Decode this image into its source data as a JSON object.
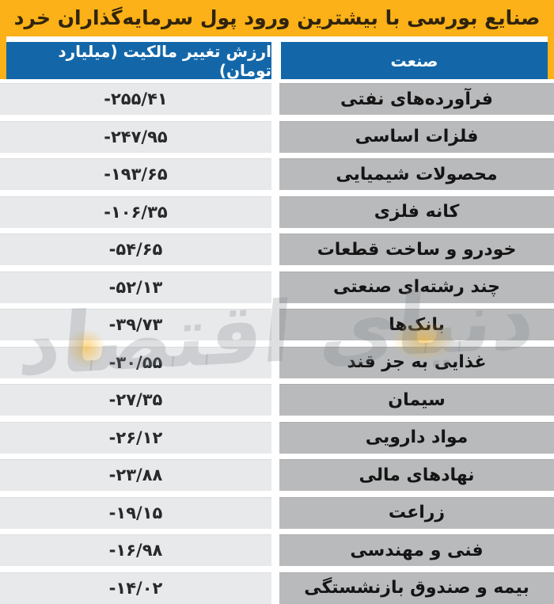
{
  "title": "صنایع بورسی با بیشترین ورود پول سرمایه‌گذاران خرد",
  "watermark": "دنیای اقتصاد",
  "table": {
    "columns": {
      "value_header": "ارزش تغییر مالکیت (میلیارد تومان)",
      "industry_header": "صنعت"
    },
    "rows": [
      {
        "value": "-۲۵۵/۴۱",
        "industry": "فرآورده‌های نفتی"
      },
      {
        "value": "-۲۴۷/۹۵",
        "industry": "فلزات اساسی"
      },
      {
        "value": "-۱۹۳/۶۵",
        "industry": "محصولات شیمیایی"
      },
      {
        "value": "-۱۰۶/۳۵",
        "industry": "کانه فلزی"
      },
      {
        "value": "-۵۴/۶۵",
        "industry": "خودرو و ساخت قطعات"
      },
      {
        "value": "-۵۲/۱۳",
        "industry": "چند رشته‌ای صنعتی"
      },
      {
        "value": "-۳۹/۷۳",
        "industry": "بانک‌ها"
      },
      {
        "value": "-۳۰/۵۵",
        "industry": "غذایی به جز قند"
      },
      {
        "value": "-۲۷/۳۵",
        "industry": "سیمان"
      },
      {
        "value": "-۲۶/۱۲",
        "industry": "مواد دارویی"
      },
      {
        "value": "-۲۳/۸۸",
        "industry": "نهادهای مالی"
      },
      {
        "value": "-۱۹/۱۵",
        "industry": "زراعت"
      },
      {
        "value": "-۱۶/۹۸",
        "industry": "فنی و مهندسی"
      },
      {
        "value": "-۱۴/۰۲",
        "industry": "بیمه و صندوق بازنشستگی"
      }
    ]
  },
  "colors": {
    "accent_yellow": "#FBB117",
    "header_blue": "#1367A9",
    "value_cell_bg": "#E8E9EB",
    "industry_cell_bg": "#B9BABC",
    "title_text": "#30240E"
  },
  "chart_data": {
    "type": "table",
    "title": "صنایع بورسی با بیشترین ورود پول سرمایه‌گذاران خرد",
    "columns": [
      "ارزش تغییر مالکیت (میلیارد تومان)",
      "صنعت"
    ],
    "categories": [
      "فرآورده‌های نفتی",
      "فلزات اساسی",
      "محصولات شیمیایی",
      "کانه فلزی",
      "خودرو و ساخت قطعات",
      "چند رشته‌ای صنعتی",
      "بانک‌ها",
      "غذایی به جز قند",
      "سیمان",
      "مواد دارویی",
      "نهادهای مالی",
      "زراعت",
      "فنی و مهندسی",
      "بیمه و صندوق بازنشستگی"
    ],
    "values": [
      -255.41,
      -247.95,
      -193.65,
      -106.35,
      -54.65,
      -52.13,
      -39.73,
      -30.55,
      -27.35,
      -26.12,
      -23.88,
      -19.15,
      -16.98,
      -14.02
    ],
    "unit": "میلیارد تومان"
  }
}
